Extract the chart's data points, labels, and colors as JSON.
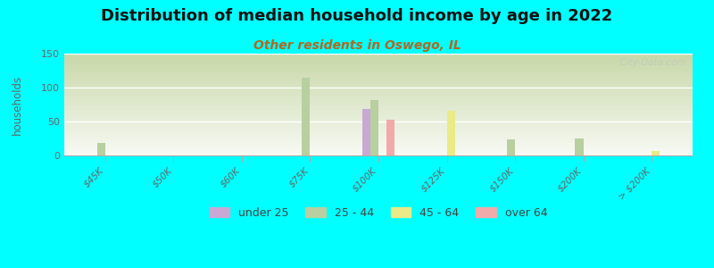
{
  "title": "Distribution of median household income by age in 2022",
  "subtitle": "Other residents in Oswego, IL",
  "ylabel": "households",
  "background_color": "#00FFFF",
  "ylim": [
    0,
    150
  ],
  "yticks": [
    0,
    50,
    100,
    150
  ],
  "categories": [
    "$45K",
    "$50K",
    "$60K",
    "$75K",
    "$100K",
    "$125K",
    "$150K",
    "$200K",
    "> $200K"
  ],
  "series": {
    "under 25": [
      0,
      0,
      0,
      0,
      68,
      0,
      0,
      0,
      0
    ],
    "25 - 44": [
      18,
      0,
      0,
      114,
      82,
      0,
      24,
      25,
      0
    ],
    "45 - 64": [
      0,
      0,
      0,
      0,
      0,
      66,
      0,
      0,
      7
    ],
    "over 64": [
      0,
      0,
      0,
      0,
      53,
      0,
      0,
      0,
      0
    ]
  },
  "colors": {
    "under 25": "#C9A8D4",
    "25 - 44": "#b8cfa0",
    "45 - 64": "#EAEA88",
    "over 64": "#F0AAAA"
  },
  "bar_width": 0.12,
  "watermark": "  City-Data.com",
  "legend_order": [
    "under 25",
    "25 - 44",
    "45 - 64",
    "over 64"
  ],
  "title_fontsize": 13,
  "subtitle_fontsize": 10,
  "subtitle_color": "#b06820"
}
